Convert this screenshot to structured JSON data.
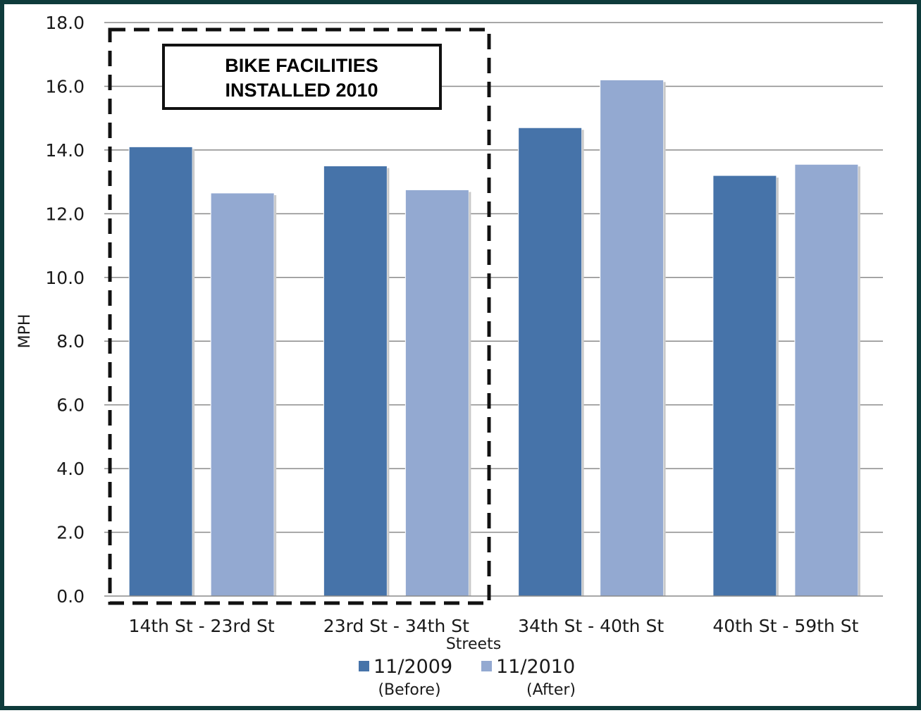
{
  "chart_data": {
    "type": "bar",
    "categories": [
      "14th St - 23rd St",
      "23rd St - 34th St",
      "34th St - 40th St",
      "40th St - 59th St"
    ],
    "series": [
      {
        "name": "11/2009",
        "sublabel": "(Before)",
        "color": "#4673a9",
        "values": [
          14.1,
          13.5,
          14.7,
          13.2
        ]
      },
      {
        "name": "11/2010",
        "sublabel": "(After)",
        "color": "#93a9d1",
        "values": [
          12.65,
          12.75,
          16.2,
          13.55
        ]
      }
    ],
    "xlabel": "Streets",
    "ylabel": "MPH",
    "ylim": [
      0,
      18
    ],
    "yticks": [
      "0.0",
      "2.0",
      "4.0",
      "6.0",
      "8.0",
      "10.0",
      "12.0",
      "14.0",
      "16.0",
      "18.0"
    ],
    "grid": true,
    "legend_position": "bottom",
    "annotation": {
      "line1": "BIKE FACILITIES",
      "line2": "INSTALLED 2010",
      "highlighted_categories": [
        "14th St - 23rd St",
        "23rd St - 34th St"
      ]
    },
    "frame_color": "#0e3b3b"
  }
}
